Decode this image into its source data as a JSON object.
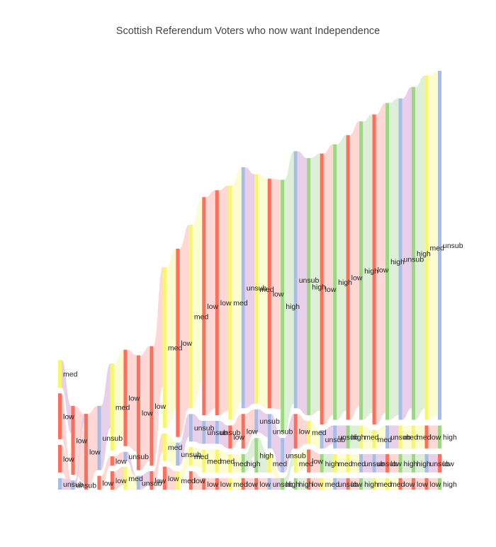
{
  "chart_data": {
    "type": "sankey",
    "title": "Scottish Referendum Voters who now want Independence",
    "orientation": "horizontal",
    "level_colors": {
      "low": "#ff6e5a",
      "med": "#f7f76e",
      "high": "#9ad97f",
      "unsub": "#a8bde6"
    },
    "band_colors": {
      "low": "#ffd0cc",
      "med": "#fafbc8",
      "high": "#d7edd0",
      "unsub": "#e4c8e6"
    },
    "columns": [
      {
        "nodes": [
          {
            "label": "med",
            "value": 12
          },
          {
            "label": "low",
            "value": 20
          },
          {
            "label": "low",
            "value": 12
          },
          {
            "label": "unsub",
            "value": 5
          }
        ]
      },
      {
        "nodes": [
          {
            "label": "low",
            "value": 30
          },
          {
            "label": "unsub",
            "value": 4
          }
        ]
      },
      {
        "nodes": [
          {
            "label": "low",
            "value": 33
          }
        ]
      },
      {
        "nodes": [
          {
            "label": "unsub",
            "value": 28
          },
          {
            "label": "low",
            "value": 6
          }
        ]
      },
      {
        "nodes": [
          {
            "label": "med",
            "value": 38
          },
          {
            "label": "low",
            "value": 4
          },
          {
            "label": "low",
            "value": 8
          }
        ]
      },
      {
        "nodes": [
          {
            "label": "low",
            "value": 42
          },
          {
            "label": "unsub",
            "value": 4
          },
          {
            "label": "med",
            "value": 10
          }
        ]
      },
      {
        "nodes": [
          {
            "label": "low",
            "value": 50
          },
          {
            "label": "unsub",
            "value": 6
          }
        ]
      },
      {
        "nodes": [
          {
            "label": "low",
            "value": 52
          },
          {
            "label": "low",
            "value": 8
          }
        ]
      },
      {
        "nodes": [
          {
            "label": "med",
            "value": 70
          },
          {
            "label": "med",
            "value": 12
          },
          {
            "label": "low",
            "value": 10
          }
        ]
      },
      {
        "nodes": [
          {
            "label": "low",
            "value": 82
          },
          {
            "label": "unsub",
            "value": 10
          },
          {
            "label": "med",
            "value": 8
          }
        ]
      },
      {
        "nodes": [
          {
            "label": "med",
            "value": 80
          },
          {
            "label": "unsub",
            "value": 12
          },
          {
            "label": "med",
            "value": 8
          },
          {
            "label": "low",
            "value": 8
          }
        ]
      },
      {
        "nodes": [
          {
            "label": "low",
            "value": 95
          },
          {
            "label": "unsub",
            "value": 10
          },
          {
            "label": "med",
            "value": 10
          },
          {
            "label": "low",
            "value": 5
          }
        ]
      },
      {
        "nodes": [
          {
            "label": "low",
            "value": 98
          },
          {
            "label": "unsub",
            "value": 10
          },
          {
            "label": "med",
            "value": 10
          },
          {
            "label": "low",
            "value": 5
          }
        ]
      },
      {
        "nodes": [
          {
            "label": "med",
            "value": 102
          },
          {
            "label": "low",
            "value": 10
          },
          {
            "label": "med",
            "value": 8
          },
          {
            "label": "med",
            "value": 5
          }
        ]
      },
      {
        "nodes": [
          {
            "label": "unsub",
            "value": 105
          },
          {
            "label": "low",
            "value": 15
          },
          {
            "label": "high",
            "value": 8
          },
          {
            "label": "low",
            "value": 5
          }
        ]
      },
      {
        "nodes": [
          {
            "label": "med",
            "value": 100
          },
          {
            "label": "unsub",
            "value": 10
          },
          {
            "label": "high",
            "value": 15
          },
          {
            "label": "low",
            "value": 5
          }
        ]
      },
      {
        "nodes": [
          {
            "label": "low",
            "value": 100
          },
          {
            "label": "unsub",
            "value": 15
          },
          {
            "label": "med",
            "value": 8
          },
          {
            "label": "unsub",
            "value": 5
          }
        ]
      },
      {
        "nodes": [
          {
            "label": "high",
            "value": 110
          },
          {
            "label": "unsub",
            "value": 15
          },
          {
            "label": "high",
            "value": 5
          }
        ]
      },
      {
        "nodes": [
          {
            "label": "unsub",
            "value": 112
          },
          {
            "label": "low",
            "value": 15
          },
          {
            "label": "med",
            "value": 8
          },
          {
            "label": "high",
            "value": 5
          }
        ]
      },
      {
        "nodes": [
          {
            "label": "high",
            "value": 112
          },
          {
            "label": "med",
            "value": 10
          },
          {
            "label": "low",
            "value": 10
          },
          {
            "label": "low",
            "value": 5
          }
        ]
      },
      {
        "nodes": [
          {
            "label": "low",
            "value": 118
          },
          {
            "label": "unsub",
            "value": 8
          },
          {
            "label": "high",
            "value": 8
          },
          {
            "label": "med",
            "value": 5
          }
        ]
      },
      {
        "nodes": [
          {
            "label": "high",
            "value": 120
          },
          {
            "label": "unsub",
            "value": 10
          },
          {
            "label": "med",
            "value": 8
          },
          {
            "label": "unsub",
            "value": 5
          }
        ]
      },
      {
        "nodes": [
          {
            "label": "low",
            "value": 124
          },
          {
            "label": "high",
            "value": 10
          },
          {
            "label": "med",
            "value": 8
          },
          {
            "label": "low",
            "value": 5
          }
        ]
      },
      {
        "nodes": [
          {
            "label": "high",
            "value": 130
          },
          {
            "label": "med",
            "value": 10
          },
          {
            "label": "unsub",
            "value": 8
          },
          {
            "label": "high",
            "value": 5
          }
        ]
      },
      {
        "nodes": [
          {
            "label": "low",
            "value": 135
          },
          {
            "label": "med",
            "value": 8
          },
          {
            "label": "unsub",
            "value": 8
          },
          {
            "label": "med",
            "value": 5
          }
        ]
      },
      {
        "nodes": [
          {
            "label": "high",
            "value": 138
          },
          {
            "label": "unsub",
            "value": 10
          },
          {
            "label": "low",
            "value": 8
          },
          {
            "label": "med",
            "value": 5
          }
        ]
      },
      {
        "nodes": [
          {
            "label": "unsub",
            "value": 140
          },
          {
            "label": "med",
            "value": 10
          },
          {
            "label": "high",
            "value": 8
          },
          {
            "label": "low",
            "value": 5
          }
        ]
      },
      {
        "nodes": [
          {
            "label": "high",
            "value": 145
          },
          {
            "label": "med",
            "value": 10
          },
          {
            "label": "high",
            "value": 8
          },
          {
            "label": "low",
            "value": 5
          }
        ]
      },
      {
        "nodes": [
          {
            "label": "med",
            "value": 150
          },
          {
            "label": "low",
            "value": 10
          },
          {
            "label": "unsub",
            "value": 8
          },
          {
            "label": "low",
            "value": 5
          }
        ]
      },
      {
        "nodes": [
          {
            "label": "unsub",
            "value": 152
          },
          {
            "label": "high",
            "value": 10
          },
          {
            "label": "low",
            "value": 8
          },
          {
            "label": "high",
            "value": 5
          }
        ]
      }
    ]
  }
}
